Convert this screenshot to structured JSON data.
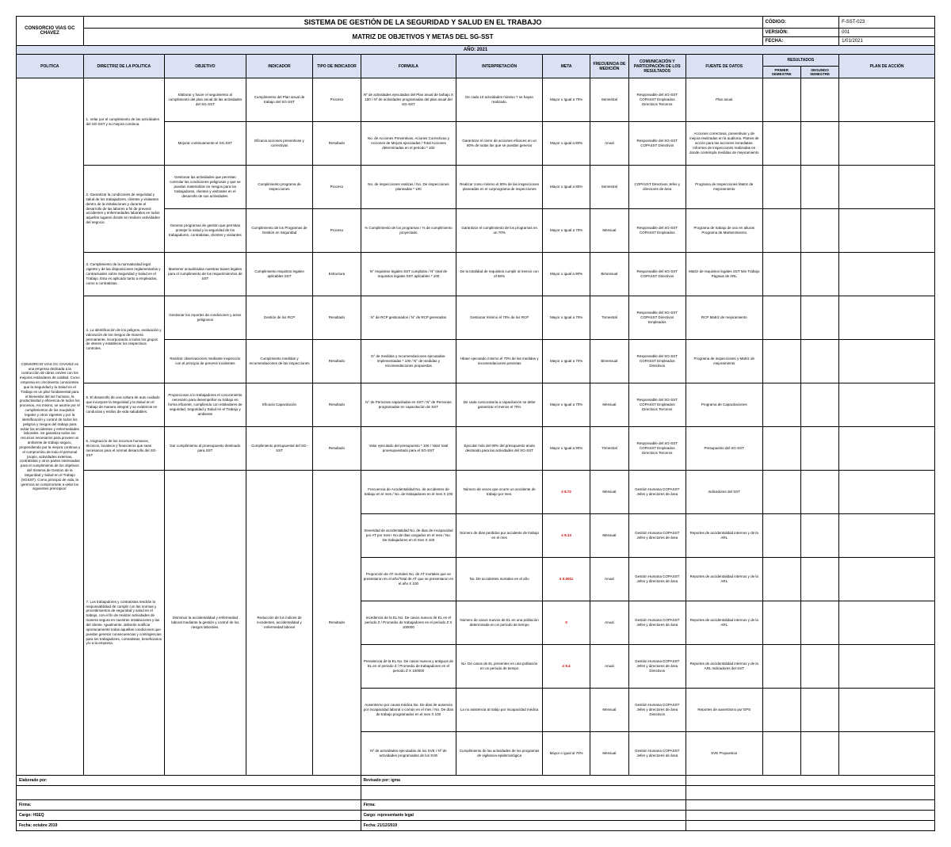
{
  "header": {
    "company": "CONSORCIO VIAS GC CHAVEZ",
    "title": "SISTEMA DE GESTIÓN DE LA SEGURIDAD Y SALUD EN EL TRABAJO",
    "subtitle": "MATRIZ DE OBJETIVOS Y METAS DEL SG-SST",
    "codigo_label": "CÓDIGO:",
    "codigo_val": "F-SST-023",
    "version_label": "VERSIÓN:",
    "version_val": "001",
    "fecha_label": "FECHA:",
    "fecha_val": "1/01/2021",
    "year": "AÑO: 2021"
  },
  "columns": {
    "c1": "POLITICA",
    "c2": "DIRECTRIZ DE LA POLITICA",
    "c3": "OBJETIVO",
    "c4": "INDICADOR",
    "c5": "TIPO DE INDICADOR",
    "c6": "FORMULA",
    "c7": "INTERPRETACIÓN",
    "c8": "META",
    "c9": "FRECUENCIA DE MEDICIÓN",
    "c10": "COMUNICACIÓN Y PARTICIPACIÓN DE LOS RESULTADOS",
    "c11": "FUENTE DE DATOS",
    "c12": "RESULTADOS",
    "c12a": "PRIMER SEMESTRE",
    "c12b": "SEGUNDO SEMESTRE",
    "c13": "PLAN DE ACCIÓN"
  },
  "policy": "CONSORCIO VIAS GC CHAVEZ es una empresa dedicada a la contrucciòn de obras cvivles con los mejores estàndares de calidad.  Como empresa en crecimiento conscientes que la Seguridad y la Salud en el Trabajo es un pilar fundamental para el bienestar del ser humano, la productividad y eficiencia de todos los procesos, Asi mismo, se asume por el cumplimientos de los reuqisitos legales y otros vigentes y por la identificación y control de todos los peligros y riesgos del trabajo para evitar los accidentes y enfermedades laborales. Se garantiza todos los recursos necesarios para proveer un ambiente de trabajo seguro, propendiendo por la mejora continua y el compromiso de todo el personal propio, actividades externas, contratistas y otros partes interesadas para el cumplimiento de los objetivos del Sistema de Gestion de la Seguridad y Salud en el Trabajo (SGSST). Como principio de vida, la gerencia se comprromete a velar los siguientes prencipios:",
  "rows": [
    {
      "dir": "1. Velar por el cumplimiento de las actividades del SG-SST y su mejora continua.",
      "obj": "Elaborar y hacer el seguimiento al cumplimiento del plan anual de las actividades del SG-SST",
      "ind": "Cumplimiento del Plan anual de trabajo del SG-SST",
      "tipo": "Proceso",
      "formula": "Nº de actividades ejecutadas del Plan anual de tarbajo X 100 / Nº de actividades programadas del plan anual del SG-SST",
      "interp": "De cada 10 actividades minimo 7 se hayan realizado.",
      "meta": "Mayor o Igual a 70%",
      "freq": "Semestral",
      "com": "Responsable del SG-SST\nCOPASST\nEmpleados\nDirectivos\nTerceros",
      "fuente": "Plan anual"
    },
    {
      "dir": "",
      "obj": "Mejorar continuamente el SG.SST",
      "ind": "Eficacia acciones preventivas y correctivas",
      "tipo": "Resultado",
      "formula": "No. de Acciones Preventivas, Aciones Correctivas y Acciones de Mejora ejecutadas / Total Acciones determinadas en el periodo * 100",
      "interp": "Garantizar el cierre de acciones eficaces en un 80% de todas las que se puedan generar",
      "meta": "Mayor o igual a 80%",
      "freq": "Anual",
      "com": "Responsable del SG-SST\nCOPASST\nDirectivos",
      "fuente": "Acciones correctivas, preventivas y de mejora realizadas en la auditoria.\nPlanes de acción para las acciones inmediatas.\nInformes de inspecciones realizadas en donde contempla medidas de mejoramiento"
    },
    {
      "dir": "2. Garantizar la condiciones de seguridad y salud de los trabajadores, clientes y visitantes dentro de la instalaciones y durante el desarrollo de las labores a fin de prevenir accidentes y enfermedades laborales en todos aquellos lugares donde se realicen actividades del negocio.",
      "obj": "Gestionar las actividades que permitan controlar las condiciones peligrosas y que se puedan materializar en riesgos para los trabajadores, clientes y visitnates en el desarrollo de sus actividades.",
      "ind": "Cumplimiento programa de inspecciones",
      "tipo": "Proceso",
      "formula": "No. de inspecciones realizas / No. De inspecciones planeadas * 100",
      "interp": "Realizar como minimo el 80% de las inspecciones planeadas en el corpnograma de inspecciones",
      "meta": "Mayor o Igual a 80%",
      "freq": "Semestral",
      "com": "COPASST\nDirectivos\nJefes y directores de área",
      "fuente": "Programa de Inspecciones\nMatriz de mejoramiento"
    },
    {
      "dir": "",
      "obj": "Generar programas de gestión que permitan protejer la salud y la seguridad de los trabajadores, contratistas, clientes y visitantes",
      "ind": "Cumplimiento de los Programas de Gestión en Seguridad",
      "tipo": "Proceso",
      "formula": "% Cumplimiento de los programas / % de cumplimiento proyectado",
      "interp": "Garantizar el cumplimiento de los programas en un 70%",
      "meta": "Mayor o Igual a 70%",
      "freq": "Mensual",
      "com": "Responsable del SG-SST\nCOPASST\nEmpleados",
      "fuente": "Programa de trabajo de uso en alturas\nPrograma de Mantenimiento"
    },
    {
      "dir": "3. Cumplimiento de la normatividad legal vigente y de las disposiciones reglamentarias y contractuales sobre Seguridad y Salud en el Trabajo. Esto es aplicado tanto a empleados, como a contratistas.",
      "obj": "Mantener actualizadas nuestras bases legales para el cumplimeinto de los requerimienrtos de SST",
      "ind": "Cumplimiento requistos legales aplicables SST",
      "tipo": "Estructura",
      "formula": "N° requisitos legales SST cumplidos / N° total de requisitos legales SST aplicables * 100",
      "interp": "De la totalidad de requisitos cumplir al menos con el 90%",
      "meta": "Mayor o igual a 90%",
      "freq": "Bimensual",
      "com": "Responsable del SG-SST\nCOPASST\nDirectivos",
      "fuente": "Matriz de requisitos legales SST\nMin Trabajo\nPágnias de ARL"
    },
    {
      "dir": "4. La identificación de los peligros, evaluación y valoración de los riesgos de manera permanente, incorporando a todos los grupos de interes y establecer los respectivos controles.",
      "obj": "Gestionar los reportes de condiciones y actos peligrosos",
      "ind": "Gestión de los RCP",
      "tipo": "Resultado",
      "formula": "N° de RCP gestionados / N° de RCP generados",
      "interp": "Gestionar minimo el 70% de los RCP",
      "meta": "Mayor o Igual a 70%",
      "freq": "Trimestral",
      "com": "Responsable del SG-SST\nCOPASST\nDirectivos\nEmpleados",
      "fuente": "RCP\nMatriz de mejoramiento"
    },
    {
      "dir": "",
      "obj": "Realizar observaciones mediante inspección con el principio de prevenir incidentes",
      "ind": "Cumpimiento medidas y recomendaciones de las inspecciones",
      "tipo": "Resultado",
      "formula": "N° de medidas y recomendaciones ejecutadas-implementadas * 100 / N° de medidas y recomendaciones propuestas",
      "interp": "Hbaer ejecutado minimo el 70% de las medidas y recomendaciones previstas",
      "meta": "Mayor o Igual a 70%",
      "freq": "Bimensual",
      "com": "Responsable del SG-SST\nCOPASST\nEmpleados\nDirectivos",
      "fuente": "Programa de inspecciones y Matriz de mejoramiento"
    },
    {
      "dir": "5. El desarrollo de una cultura de auto cuidado que incorpore la Seguridad y la Salud en el Trabajo de manera integral y se evidencie en conductas y estilos de vida saludables.",
      "obj": "Proporcionar a lo trabajadores el conocimiento necesario para desempeñar su trabajo en forma eficiente, cumpliendo con estándares  de seguridad, Seguridad y Salud en el Trabajo y ambiente",
      "ind": "Eficacia Capacitación",
      "tipo": "Resultado",
      "formula": "N° de Personas capacitadas en SST / N° de Personas programadas en capacitación de SST",
      "interp": "De cada concocatoria a capacitación se debe garantizar el menos el 70%",
      "meta": "Mayor o Igual a 70%",
      "freq": "Mensual",
      "com": "Responsable del SG-SST\nCOPASST\nEmpleados\nDirectivos\nTerceros",
      "fuente": "Programa de Capacitaciones"
    },
    {
      "dir": "6. Asignación de los recursos humanos, técnicos, locativos y financieros que sean necesarios para el normal desarrollo del SG-SST",
      "obj": "Dar cumplimiento al proesupuesto destinado para SST",
      "ind": "Cumplimiento presupuestal del SG-SST",
      "tipo": "Resultado",
      "formula": "Valor ejecutado del presupuesto * 100 / Valor total proesupuestado para el SG-SST",
      "interp": "Ejecutar más del 90% del presupuesto anula destinado para las actividades del SG-SST",
      "meta": "Mayor o Igual a 90%",
      "freq": "Trimestral",
      "com": "Responsable del SG-SST\nCOPASST\nEmpleados\nDirectivos\nTerceros",
      "fuente": "Presupuesto del SG-SST"
    },
    {
      "dir": "7. Los trabajadores y contratistas tendrán la responsabilidad de cumplir con las normas y procedimientos de seguridad y salud en el trabajo, con el fin de realizar actividades de manera segura en nuestras instalaciones y las del cliente. Igualmente, deberán notificar oportunamente todas aquellas condiciones que puedan generar consecuencias y contingencias para los trabajadores, contratistas, beneficiarios y/o a la empresa.",
      "obj": "Disminuir la accidentalidad y enfermedad laboral mediante la gestión y control de los riesgos laborales.",
      "ind": "Reducción de los índices de incedentes, accidentalidad y enfermedad laboral",
      "tipo": "Resultado",
      "formula": "Frecuencia de Accidentalidad\nNo. de accidentes de trabajo en el mes / No. de trabajadores en el mes X 100",
      "interp": "Número de veces que ocurre un accidente de trabajo por mes.",
      "meta": "≤ 8.72",
      "freq": "Mensual",
      "com": "Gestión Humana\nCOPASST\nJefes y directores de área",
      "fuente": "Indicadores del SST",
      "red": true
    },
    {
      "dir": "",
      "obj": "",
      "ind": "",
      "tipo": "",
      "formula": "Severidad de accidentalidad\nNo. de dias de incapacidad por AT por mes+ No de dias cargados en el mes / No. De trabajadores en el mes X 100",
      "interp": "Número de dias perdidos por accidente de trabajo en el mes",
      "meta": "≤ 9.13",
      "freq": "Mensual",
      "com": "Gestión Humana\nCOPASST\nJefes y directores de área",
      "fuente": "Reportes de accidentalidad internos y de la ARL",
      "red": true
    },
    {
      "dir": "",
      "obj": "",
      "ind": "",
      "tipo": "",
      "formula": "Proporción de AT mortales\nNo. de AT mortales que se presentaron en el año/Total de AT que se presentaron en el año X 100",
      "interp": "No. De accidentes mortales en el año",
      "meta": "≤ 0.0011",
      "freq": "Anual",
      "com": "Gestión Humana\nCOPASST\nJefes y directores de área",
      "fuente": "Reportes de accidentalidad internos y de la ARL",
      "red": true
    },
    {
      "dir": "",
      "obj": "",
      "ind": "",
      "tipo": "",
      "formula": "Incedencia de la EL\nNo. De casos nuevos de EL en el periodo Z / Promedio de trabajadores en el periodo Z X 100000",
      "interp": "Número de casos nuevos de EL en una poblaciòn determinada en un perìodo de tiempo",
      "meta": "0",
      "freq": "Anual",
      "com": "Gestión Humana\nCOPASST\nJefes y directores de área",
      "fuente": "Reportes de accidentalidad internos y de la ARL",
      "red": true
    },
    {
      "dir": "",
      "obj": "",
      "ind": "",
      "tipo": "",
      "formula": "Prevalencia de la EL\nNo. De casos nuevos y antiguos de EL en el periodo Z / Promedio de trabajadores en el periodo Z X 100000",
      "interp": "No. De casos de EL presentes en una población en un periodo de tiempo",
      "meta": "≤ 5.4",
      "freq": "Anual",
      "com": "Gestión Humana\nCOPASST\nJefes y directores de área\nDirectivos",
      "fuente": "Reportes de accidentalidad internos y de la ARL\nIndicadores del SST",
      "red": true
    },
    {
      "dir": "",
      "obj": "",
      "ind": "",
      "tipo": "",
      "formula": "Ausentismo por causa médica\nNo. De dias de ausencia por incapacidad laboral o común en el mes / No. De días de trabajo programados en el mes X 100",
      "interp": "La no asistencia al trabjo por incapacidad médica",
      "meta": "",
      "freq": "Mensual",
      "com": "Gestión Humana\nCOPASST\nJefes y directores de área\nDirectivos",
      "fuente": "Reportes de ausentismo por EPS"
    },
    {
      "dir": "",
      "obj": "",
      "ind": "",
      "tipo": "",
      "formula": "Nº de actividades ejecutadas de los SVE / Nº de actividades programadas de los SVE",
      "interp": "Cumplimiento de las actividades de los programas de vigilancia epidemiológica",
      "meta": "Mayor o igual al 70%",
      "freq": "Mensual",
      "com": "Gestión Humana\nCOPASST\nJefes y directores de área",
      "fuente": "SVE Propuestos"
    }
  ],
  "footer": {
    "elab": "Elaborado por:",
    "rev": "Revisado por: igma",
    "firma": "Firma:",
    "cargo1": "Cargo: HSEQ",
    "cargo2": "Cargo: representante legal",
    "fecha1": "Fecha: octubre 2019",
    "fecha2": "Fecha: 21/12/2019"
  }
}
